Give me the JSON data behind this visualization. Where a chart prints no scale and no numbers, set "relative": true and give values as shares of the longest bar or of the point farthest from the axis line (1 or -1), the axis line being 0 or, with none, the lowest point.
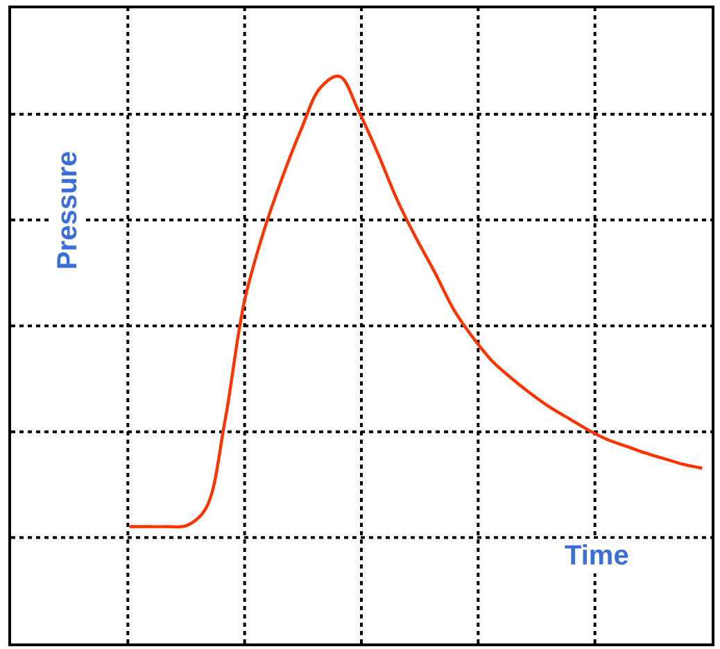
{
  "chart_data": {
    "type": "line",
    "relative": true,
    "xlabel": "Time",
    "ylabel": "Pressure",
    "grid": true,
    "marker": "none",
    "line_style": "solid",
    "categories": [
      null,
      null,
      null,
      null,
      null,
      null,
      null,
      null,
      null,
      null,
      null,
      null,
      null,
      null,
      null,
      null,
      null,
      null,
      null,
      null,
      null,
      null,
      null,
      null,
      null,
      null,
      null,
      null,
      null,
      null,
      null,
      null,
      null,
      null,
      null,
      null,
      null
    ],
    "series": [
      {
        "color": "#ff3300",
        "values": [
          null,
          null,
          null,
          null,
          null,
          null,
          0.206,
          0.206,
          0.206,
          0.208,
          0.238,
          0.392,
          0.6,
          0.723,
          0.821,
          0.907,
          0.98,
          1,
          0.939,
          0.865,
          0.784,
          0.716,
          0.654,
          0.588,
          0.539,
          0.498,
          0.468,
          0.441,
          0.417,
          0.397,
          0.377,
          0.36,
          0.348,
          0.336,
          0.326,
          0.316,
          0.309
        ]
      }
    ]
  }
}
